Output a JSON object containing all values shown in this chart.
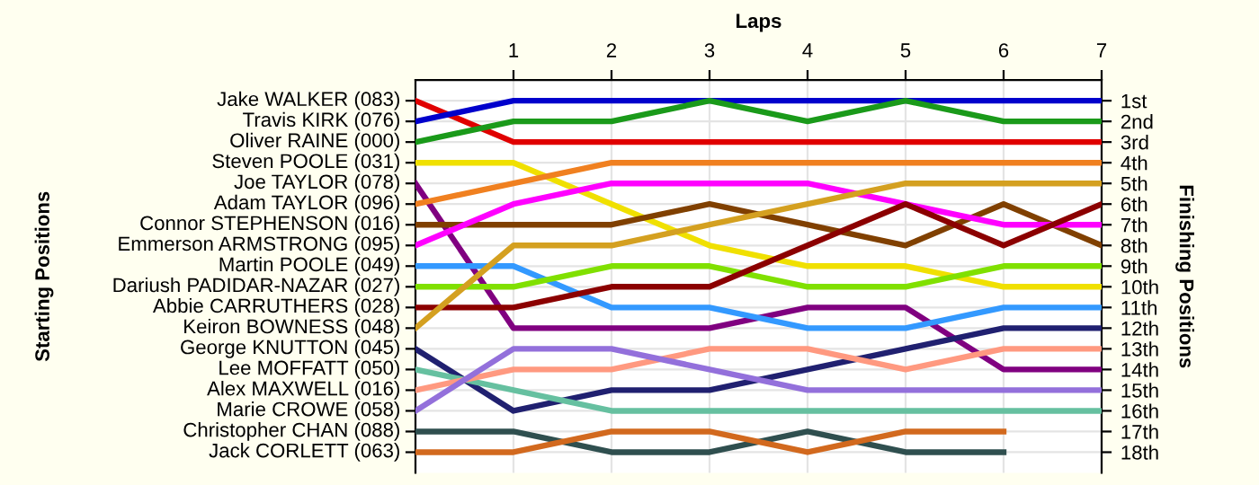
{
  "chart_data": {
    "type": "line",
    "xlabel": "Laps",
    "ylabel": "Finishing Positions",
    "annotations": [
      "Starting Positions"
    ],
    "x": [
      0,
      1,
      2,
      3,
      4,
      5,
      6,
      7
    ],
    "xlim": [
      0,
      7
    ],
    "xticks": [
      1,
      2,
      3,
      4,
      5,
      6,
      7
    ],
    "ylim": [
      19,
      0
    ],
    "yticks": [
      {
        "value": 1,
        "label": "1st"
      },
      {
        "value": 2,
        "label": "2nd"
      },
      {
        "value": 3,
        "label": "3rd"
      },
      {
        "value": 4,
        "label": "4th"
      },
      {
        "value": 5,
        "label": "5th"
      },
      {
        "value": 6,
        "label": "6th"
      },
      {
        "value": 7,
        "label": "7th"
      },
      {
        "value": 8,
        "label": "8th"
      },
      {
        "value": 9,
        "label": "9th"
      },
      {
        "value": 10,
        "label": "10th"
      },
      {
        "value": 11,
        "label": "11th"
      },
      {
        "value": 12,
        "label": "12th"
      },
      {
        "value": 13,
        "label": "13th"
      },
      {
        "value": 14,
        "label": "14th"
      },
      {
        "value": 15,
        "label": "15th"
      },
      {
        "value": 16,
        "label": "16th"
      },
      {
        "value": 17,
        "label": "17th"
      },
      {
        "value": 18,
        "label": "18th"
      }
    ],
    "grid": true,
    "marker": "none",
    "line_style": "solid",
    "series": [
      {
        "name": "Jake WALKER (083)",
        "color": "#e00000",
        "values": [
          1,
          3,
          3,
          3,
          3,
          3,
          3,
          3
        ]
      },
      {
        "name": "Travis KIRK (076)",
        "color": "#0000cc",
        "values": [
          2,
          1,
          1,
          1,
          1,
          1,
          1,
          1
        ]
      },
      {
        "name": "Oliver RAINE (000)",
        "color": "#1a9a1a",
        "values": [
          3,
          2,
          2,
          1,
          2,
          1,
          2,
          2
        ]
      },
      {
        "name": "Steven POOLE (031)",
        "color": "#f0e000",
        "values": [
          4,
          4,
          6,
          8,
          9,
          9,
          10,
          10
        ]
      },
      {
        "name": "Joe TAYLOR (078)",
        "color": "#800080",
        "values": [
          5,
          12,
          12,
          12,
          11,
          11,
          14,
          14
        ]
      },
      {
        "name": "Adam TAYLOR (096)",
        "color": "#f08020",
        "values": [
          6,
          5,
          4,
          4,
          4,
          4,
          4,
          4
        ]
      },
      {
        "name": "Connor STEPHENSON (016)",
        "color": "#804000",
        "values": [
          7,
          7,
          7,
          6,
          7,
          8,
          6,
          8
        ]
      },
      {
        "name": "Emmerson ARMSTRONG (095)",
        "color": "#ff00ff",
        "values": [
          8,
          6,
          5,
          5,
          5,
          6,
          7,
          7
        ]
      },
      {
        "name": "Martin POOLE (049)",
        "color": "#3399ff",
        "values": [
          9,
          9,
          11,
          11,
          12,
          12,
          11,
          11
        ]
      },
      {
        "name": "Dariush PADIDAR-NAZAR (027)",
        "color": "#80e000",
        "values": [
          10,
          10,
          9,
          9,
          10,
          10,
          9,
          9
        ]
      },
      {
        "name": "Abbie CARRUTHERS (028)",
        "color": "#8b0000",
        "values": [
          11,
          11,
          10,
          10,
          8,
          6,
          8,
          6
        ]
      },
      {
        "name": "Keiron BOWNESS (048)",
        "color": "#d4a020",
        "values": [
          12,
          8,
          8,
          7,
          6,
          5,
          5,
          5
        ]
      },
      {
        "name": "George KNUTTON (045)",
        "color": "#202070",
        "values": [
          13,
          16,
          15,
          15,
          14,
          13,
          12,
          12
        ]
      },
      {
        "name": "Lee MOFFATT (050)",
        "color": "#66c0a0",
        "values": [
          14,
          15,
          16,
          16,
          16,
          16,
          16,
          16
        ]
      },
      {
        "name": "Alex MAXWELL (016)",
        "color": "#ff9980",
        "values": [
          15,
          14,
          14,
          13,
          13,
          14,
          13,
          13
        ]
      },
      {
        "name": "Marie CROWE (058)",
        "color": "#9370db",
        "values": [
          16,
          13,
          13,
          14,
          15,
          15,
          15,
          15
        ]
      },
      {
        "name": "Christopher CHAN (088)",
        "color": "#2f4f4f",
        "values": [
          17,
          17,
          18,
          18,
          17,
          18,
          18,
          null
        ]
      },
      {
        "name": "Jack CORLETT (063)",
        "color": "#d2691e",
        "values": [
          18,
          18,
          17,
          17,
          18,
          17,
          17,
          null
        ]
      }
    ]
  }
}
